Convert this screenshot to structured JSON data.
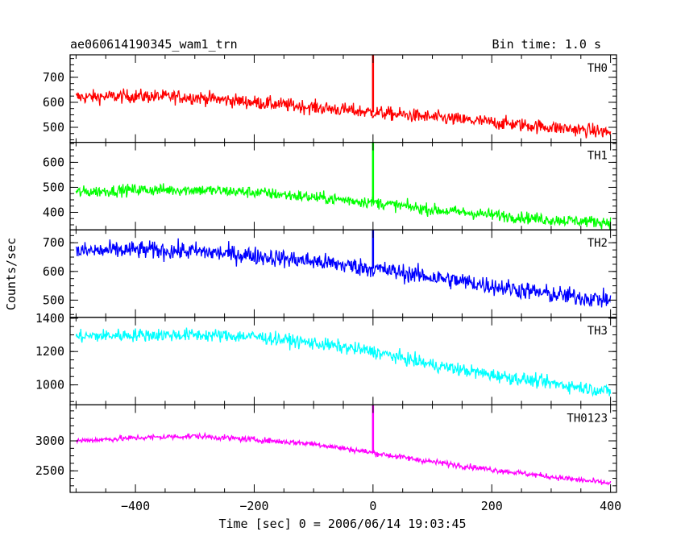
{
  "header": {
    "title": "ae060614190345_wam1_trn",
    "bin_time": "Bin time: 1.0 s"
  },
  "chart_data": {
    "type": "line",
    "title": "ae060614190345_wam1_trn",
    "xlabel": "Time [sec] 0 = 2006/06/14 19:03:45",
    "ylabel": "Counts/sec",
    "xlim": [
      -510,
      410
    ],
    "x_ticks": [
      "−400",
      "−200",
      "0",
      "200",
      "400"
    ],
    "x_tick_values": [
      -400,
      -200,
      0,
      200,
      400
    ],
    "grid": false,
    "bin_time_s": 1.0,
    "panels": [
      {
        "name": "TH0",
        "color": "#ff0000",
        "ylim": [
          440,
          790
        ],
        "y_ticks": [
          500,
          600,
          700
        ],
        "y_tick_labels": [
          "500",
          "600",
          "700"
        ],
        "x": [
          -500,
          -400,
          -300,
          -200,
          -100,
          0,
          100,
          200,
          300,
          400
        ],
        "values": [
          620,
          625,
          620,
          600,
          580,
          560,
          540,
          520,
          500,
          480
        ],
        "noise": 35,
        "spike": {
          "x": 0,
          "y": 790
        }
      },
      {
        "name": "TH1",
        "color": "#00ff00",
        "ylim": [
          330,
          680
        ],
        "y_ticks": [
          400,
          500,
          600
        ],
        "y_tick_labels": [
          "400",
          "500",
          "600"
        ],
        "x": [
          -500,
          -400,
          -300,
          -200,
          -100,
          0,
          100,
          200,
          300,
          400
        ],
        "values": [
          480,
          490,
          490,
          480,
          460,
          440,
          410,
          390,
          370,
          360
        ],
        "noise": 30,
        "spike": {
          "x": 0,
          "y": 680
        }
      },
      {
        "name": "TH2",
        "color": "#0000ff",
        "ylim": [
          440,
          745
        ],
        "y_ticks": [
          500,
          600,
          700
        ],
        "y_tick_labels": [
          "500",
          "600",
          "700"
        ],
        "x": [
          -500,
          -400,
          -300,
          -200,
          -100,
          0,
          100,
          200,
          300,
          400
        ],
        "values": [
          670,
          675,
          670,
          655,
          635,
          610,
          580,
          550,
          520,
          500
        ],
        "noise": 40,
        "spike": {
          "x": 0,
          "y": 745
        }
      },
      {
        "name": "TH3",
        "color": "#00ffff",
        "ylim": [
          880,
          1405
        ],
        "y_ticks": [
          1000,
          1200,
          1400
        ],
        "y_tick_labels": [
          "1000",
          "1200",
          "1400"
        ],
        "x": [
          -500,
          -400,
          -300,
          -200,
          -100,
          0,
          100,
          200,
          300,
          400
        ],
        "values": [
          1290,
          1300,
          1300,
          1290,
          1250,
          1200,
          1120,
          1060,
          1010,
          960
        ],
        "noise": 50,
        "spike": null
      },
      {
        "name": "TH0123",
        "color": "#ff00ff",
        "ylim": [
          2140,
          3600
        ],
        "y_ticks": [
          2500,
          3000
        ],
        "y_tick_labels": [
          "2500",
          "3000"
        ],
        "x": [
          -500,
          -400,
          -300,
          -200,
          -100,
          0,
          100,
          200,
          300,
          400
        ],
        "values": [
          3000,
          3050,
          3080,
          3020,
          2950,
          2800,
          2650,
          2520,
          2400,
          2290
        ],
        "noise": 60,
        "spike": {
          "x": 0,
          "y": 3600
        }
      }
    ]
  }
}
